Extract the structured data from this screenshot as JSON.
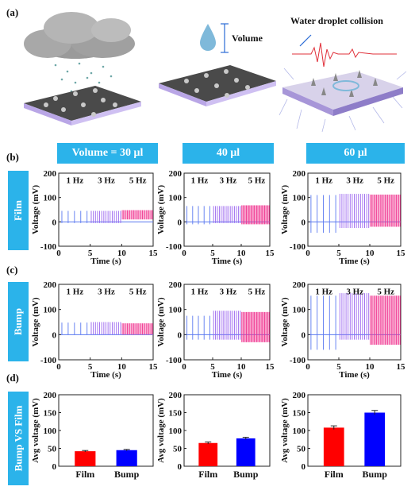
{
  "panel_labels": {
    "a": "(a)",
    "b": "(b)",
    "c": "(c)",
    "d": "(d)"
  },
  "illustration": {
    "volume_label": "Volume",
    "collision_label": "Water droplet collision"
  },
  "column_headers": [
    "Volume = 30 μl",
    "40 μl",
    "60 μl"
  ],
  "row_labels": {
    "film": "Film",
    "bump": "Bump",
    "compare": "Bump VS Film"
  },
  "colors": {
    "header_bg": "#2bb3ea",
    "hz1": "#5a78f0",
    "hz3": "#9a63ef",
    "hz5": "#f0338f",
    "film_bar": "#ff0000",
    "bump_bar": "#0000ff"
  },
  "chart_data": [
    {
      "type": "line",
      "panel": "b",
      "row": "Film",
      "volume": "30 μl",
      "xlabel": "Time (s)",
      "ylabel": "Voltage (mV)",
      "xlim": [
        0,
        15
      ],
      "ylim": [
        -100,
        200
      ],
      "xticks": [
        0,
        5,
        10,
        15
      ],
      "yticks": [
        -100,
        0,
        100,
        200
      ],
      "annotations": [
        "1 Hz",
        "3 Hz",
        "5 Hz"
      ],
      "series": [
        {
          "name": "1 Hz",
          "x_range": [
            0,
            5
          ],
          "freq": 1,
          "peak": 45,
          "trough": -5
        },
        {
          "name": "3 Hz",
          "x_range": [
            5,
            10
          ],
          "freq": 3,
          "peak": 45,
          "trough": -5
        },
        {
          "name": "5 Hz",
          "x_range": [
            10,
            15
          ],
          "freq": 5,
          "peak": 48,
          "trough": 10
        }
      ]
    },
    {
      "type": "line",
      "panel": "b",
      "row": "Film",
      "volume": "40 μl",
      "xlabel": "Time (s)",
      "ylabel": "Voltage (mV)",
      "xlim": [
        0,
        15
      ],
      "ylim": [
        -100,
        200
      ],
      "xticks": [
        0,
        5,
        10,
        15
      ],
      "yticks": [
        -100,
        0,
        100,
        200
      ],
      "annotations": [
        "1 Hz",
        "3 Hz",
        "5 Hz"
      ],
      "series": [
        {
          "name": "1 Hz",
          "x_range": [
            0,
            5
          ],
          "freq": 1,
          "peak": 65,
          "trough": -10
        },
        {
          "name": "3 Hz",
          "x_range": [
            5,
            10
          ],
          "freq": 3,
          "peak": 65,
          "trough": -5
        },
        {
          "name": "5 Hz",
          "x_range": [
            10,
            15
          ],
          "freq": 5,
          "peak": 68,
          "trough": -10
        }
      ]
    },
    {
      "type": "line",
      "panel": "b",
      "row": "Film",
      "volume": "60 μl",
      "xlabel": "Time (s)",
      "ylabel": "Voltage (mV)",
      "xlim": [
        0,
        15
      ],
      "ylim": [
        -100,
        200
      ],
      "xticks": [
        0,
        5,
        10,
        15
      ],
      "yticks": [
        -100,
        0,
        100,
        200
      ],
      "annotations": [
        "1 Hz",
        "3 Hz",
        "5 Hz"
      ],
      "series": [
        {
          "name": "1 Hz",
          "x_range": [
            0,
            5
          ],
          "freq": 1,
          "peak": 110,
          "trough": -45
        },
        {
          "name": "3 Hz",
          "x_range": [
            5,
            10
          ],
          "freq": 3,
          "peak": 115,
          "trough": -25
        },
        {
          "name": "5 Hz",
          "x_range": [
            10,
            15
          ],
          "freq": 5,
          "peak": 112,
          "trough": -20
        }
      ]
    },
    {
      "type": "line",
      "panel": "c",
      "row": "Bump",
      "volume": "30 μl",
      "xlabel": "Time (s)",
      "ylabel": "Voltage (mV)",
      "xlim": [
        0,
        15
      ],
      "ylim": [
        -100,
        200
      ],
      "xticks": [
        0,
        5,
        10,
        15
      ],
      "yticks": [
        -100,
        0,
        100,
        200
      ],
      "annotations": [
        "1 Hz",
        "3 Hz",
        "5 Hz"
      ],
      "series": [
        {
          "name": "1 Hz",
          "x_range": [
            0,
            5
          ],
          "freq": 1,
          "peak": 48,
          "trough": 0
        },
        {
          "name": "3 Hz",
          "x_range": [
            5,
            10
          ],
          "freq": 3,
          "peak": 50,
          "trough": 0
        },
        {
          "name": "5 Hz",
          "x_range": [
            10,
            15
          ],
          "freq": 5,
          "peak": 45,
          "trough": 0
        }
      ]
    },
    {
      "type": "line",
      "panel": "c",
      "row": "Bump",
      "volume": "40 μl",
      "xlabel": "Time (s)",
      "ylabel": "Voltage (mV)",
      "xlim": [
        0,
        15
      ],
      "ylim": [
        -100,
        200
      ],
      "xticks": [
        0,
        5,
        10,
        15
      ],
      "yticks": [
        -100,
        0,
        100,
        200
      ],
      "annotations": [
        "1 Hz",
        "3 Hz",
        "5 Hz"
      ],
      "series": [
        {
          "name": "1 Hz",
          "x_range": [
            0,
            5
          ],
          "freq": 1,
          "peak": 75,
          "trough": -20
        },
        {
          "name": "3 Hz",
          "x_range": [
            5,
            10
          ],
          "freq": 3,
          "peak": 95,
          "trough": -20
        },
        {
          "name": "5 Hz",
          "x_range": [
            10,
            15
          ],
          "freq": 5,
          "peak": 90,
          "trough": -30
        }
      ]
    },
    {
      "type": "line",
      "panel": "c",
      "row": "Bump",
      "volume": "60 μl",
      "xlabel": "Time (s)",
      "ylabel": "Voltage (mV)",
      "xlim": [
        0,
        15
      ],
      "ylim": [
        -100,
        200
      ],
      "xticks": [
        0,
        5,
        10,
        15
      ],
      "yticks": [
        -100,
        0,
        100,
        200
      ],
      "annotations": [
        "1 Hz",
        "3 Hz",
        "5 Hz"
      ],
      "series": [
        {
          "name": "1 Hz",
          "x_range": [
            0,
            5
          ],
          "freq": 1,
          "peak": 155,
          "trough": -60
        },
        {
          "name": "3 Hz",
          "x_range": [
            5,
            10
          ],
          "freq": 3,
          "peak": 165,
          "trough": -20
        },
        {
          "name": "5 Hz",
          "x_range": [
            10,
            15
          ],
          "freq": 5,
          "peak": 155,
          "trough": -40
        }
      ]
    },
    {
      "type": "bar",
      "panel": "d",
      "volume": "30 μl",
      "categories": [
        "Film",
        "Bump"
      ],
      "values": [
        42,
        45
      ],
      "errors": [
        2,
        2
      ],
      "ylabel": "Avg voltage (mV)",
      "ylim": [
        0,
        200
      ],
      "yticks": [
        0,
        50,
        100,
        150,
        200
      ]
    },
    {
      "type": "bar",
      "panel": "d",
      "volume": "40 μl",
      "categories": [
        "Film",
        "Bump"
      ],
      "values": [
        65,
        78
      ],
      "errors": [
        3,
        3
      ],
      "ylabel": "Avg voltage (mV)",
      "ylim": [
        0,
        200
      ],
      "yticks": [
        0,
        50,
        100,
        150,
        200
      ]
    },
    {
      "type": "bar",
      "panel": "d",
      "volume": "60 μl",
      "categories": [
        "Film",
        "Bump"
      ],
      "values": [
        108,
        150
      ],
      "errors": [
        5,
        6
      ],
      "ylabel": "Avg voltage (mV)",
      "ylim": [
        0,
        200
      ],
      "yticks": [
        0,
        50,
        100,
        150,
        200
      ]
    }
  ]
}
